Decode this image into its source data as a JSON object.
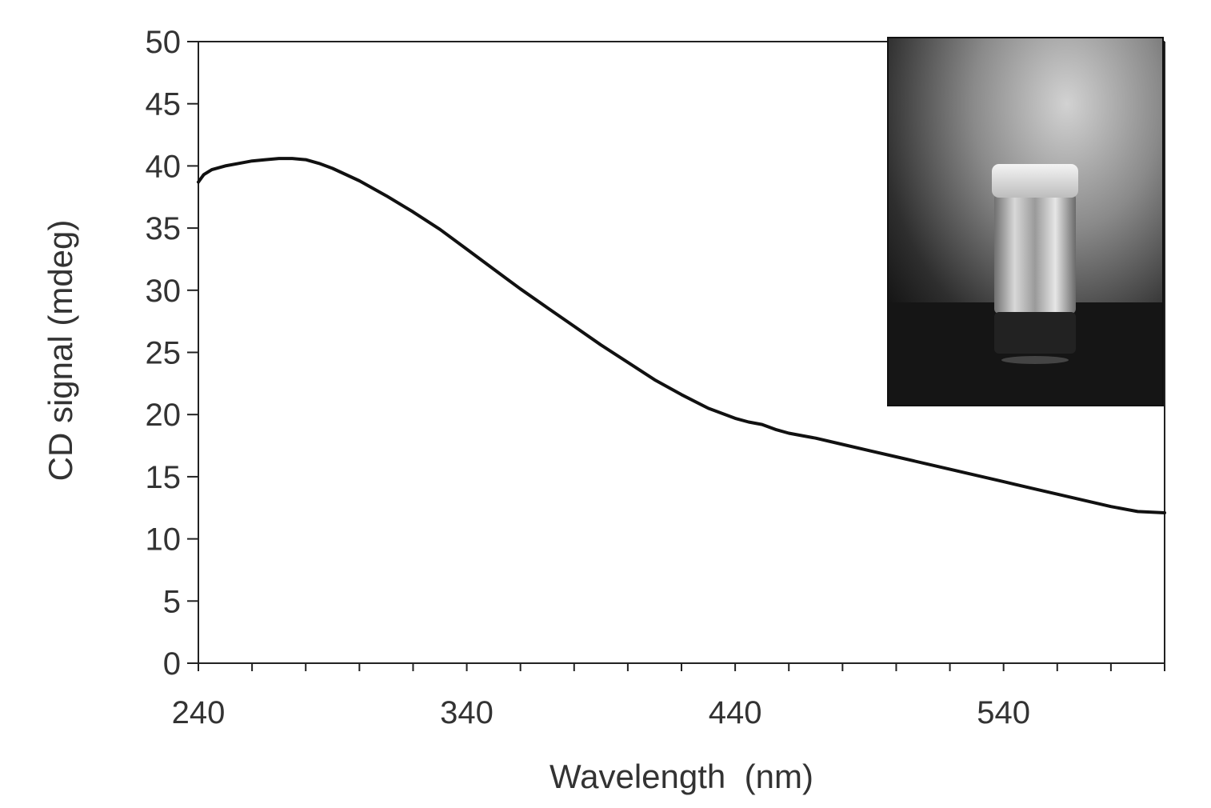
{
  "chart_data": {
    "type": "line",
    "title": "",
    "xlabel": "Wavelength  (nm)",
    "ylabel": "CD signal (mdeg)",
    "xlim": [
      240,
      600
    ],
    "ylim": [
      0,
      50
    ],
    "x_ticks": [
      "240",
      "340",
      "440",
      "540"
    ],
    "y_ticks": [
      "0",
      "5",
      "10",
      "15",
      "20",
      "25",
      "30",
      "35",
      "40",
      "45",
      "50"
    ],
    "grid": false,
    "legend": "none",
    "line_color": "#111111",
    "inset": {
      "kind": "photograph",
      "subject": "glass vial containing a gel",
      "position": "top-right"
    },
    "series": [
      {
        "x": [
          240,
          242,
          245,
          250,
          255,
          260,
          265,
          270,
          275,
          280,
          285,
          290,
          300,
          310,
          320,
          330,
          340,
          350,
          360,
          370,
          380,
          390,
          400,
          410,
          420,
          430,
          440,
          445,
          450,
          455,
          460,
          465,
          470,
          480,
          490,
          500,
          510,
          520,
          530,
          540,
          550,
          560,
          570,
          580,
          590,
          600
        ],
        "values": [
          38.7,
          39.3,
          39.7,
          40.0,
          40.2,
          40.4,
          40.5,
          40.6,
          40.6,
          40.5,
          40.2,
          39.8,
          38.8,
          37.6,
          36.3,
          34.9,
          33.3,
          31.7,
          30.1,
          28.6,
          27.1,
          25.6,
          24.2,
          22.8,
          21.6,
          20.5,
          19.7,
          19.4,
          19.2,
          18.8,
          18.5,
          18.3,
          18.1,
          17.6,
          17.1,
          16.6,
          16.1,
          15.6,
          15.1,
          14.6,
          14.1,
          13.6,
          13.1,
          12.6,
          12.2,
          12.1
        ]
      }
    ]
  }
}
